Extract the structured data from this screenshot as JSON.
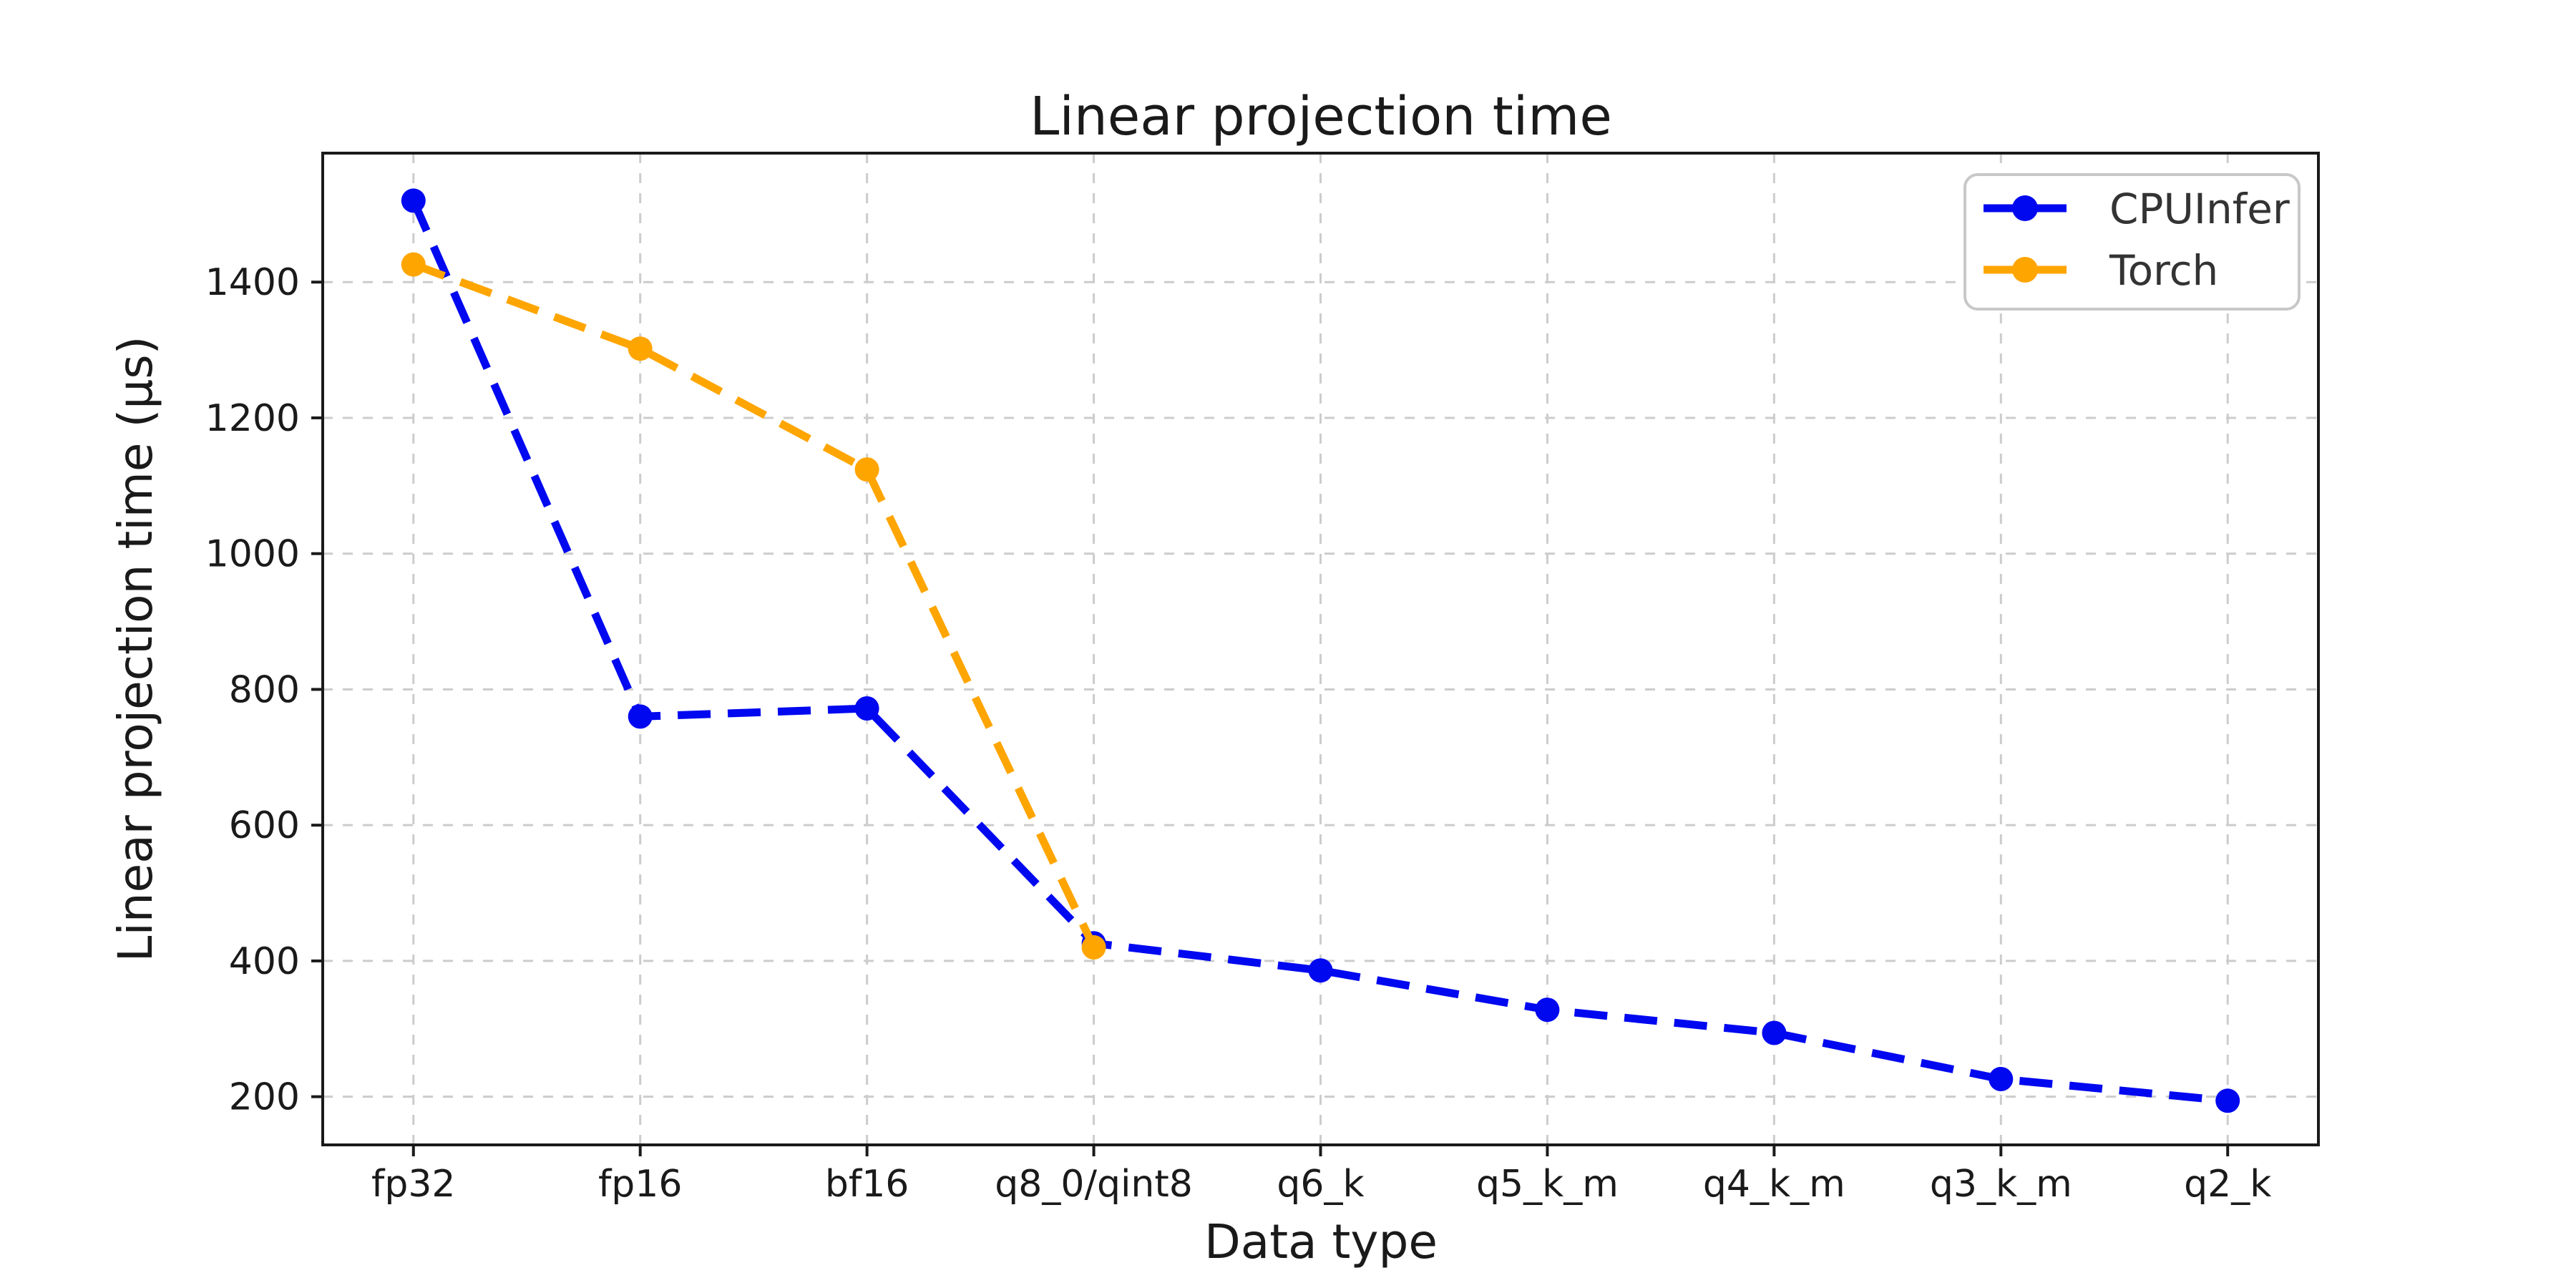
{
  "figure": {
    "background": "#ffffff",
    "text_color": "#1a1a1a",
    "spine_color": "#1a1a1a",
    "legend_text_color": "#333333",
    "legend_border_color": "#c8c8c8"
  },
  "chart_data": {
    "type": "line",
    "title": "Linear projection time",
    "xlabel": "Data type",
    "ylabel": "Linear projection time (μs)",
    "categories": [
      "fp32",
      "fp16",
      "bf16",
      "q8_0/qint8",
      "q6_k",
      "q5_k_m",
      "q4_k_m",
      "q3_k_m",
      "q2_k"
    ],
    "series": [
      {
        "name": "CPUInfer",
        "color": "#0008f0",
        "values": [
          1520,
          760,
          772,
          426,
          386,
          328,
          294,
          226,
          194
        ]
      },
      {
        "name": "Torch",
        "color": "#ffa500",
        "values": [
          1426,
          1302,
          1124,
          420
        ]
      }
    ],
    "yticks": [
      200,
      400,
      600,
      800,
      1000,
      1200,
      1400
    ],
    "ylim": [
      129,
      1590
    ],
    "grid": true,
    "grid_color": "#cccccc",
    "line_style": "dashed",
    "marker": "circle",
    "legend_position": "upper right"
  }
}
